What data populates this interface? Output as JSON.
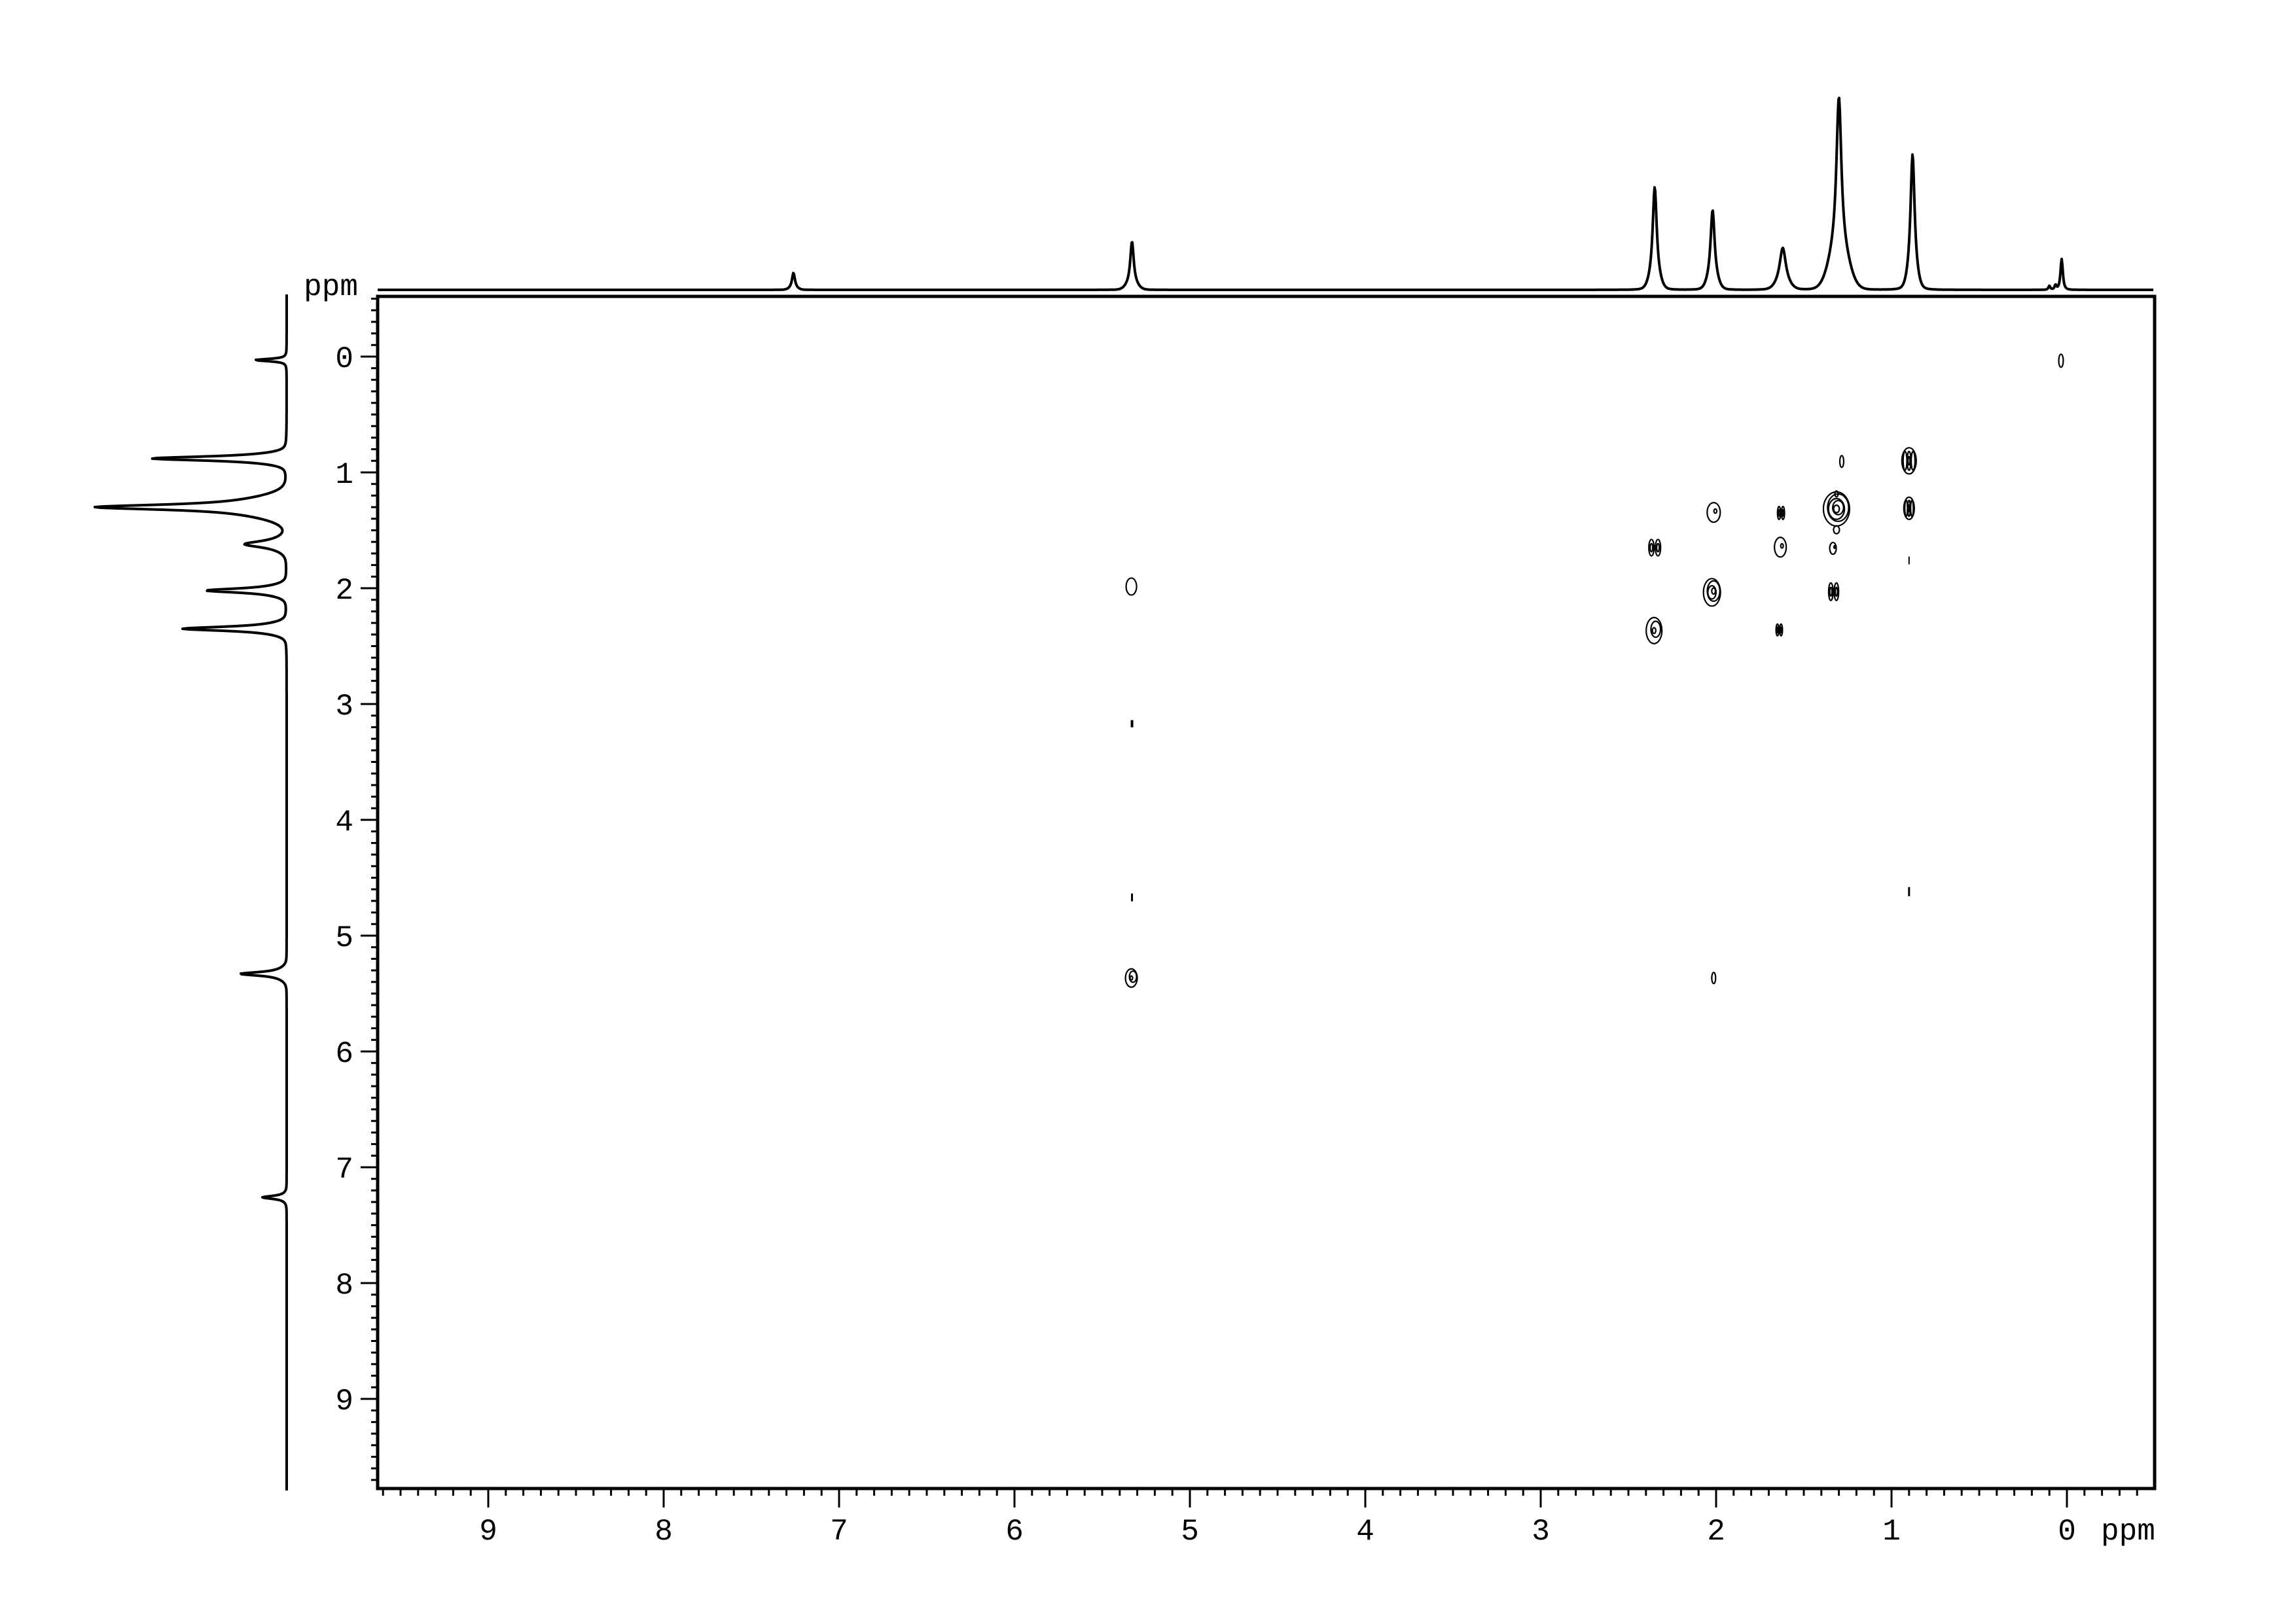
{
  "colors": {
    "foreground": "#000000",
    "background": "#ffffff"
  },
  "chart_data": {
    "type": "heatmap",
    "subtype": "2D 1H-1H COSY NMR contour spectrum with 1D projection traces on top and left",
    "title": "",
    "xlabel": "ppm",
    "ylabel": "ppm",
    "x_axis": {
      "label": "ppm",
      "major_ticks": [
        9,
        8,
        7,
        6,
        5,
        4,
        3,
        2,
        1,
        0
      ],
      "minor_tick_step": 0.1,
      "range_ppm": [
        9.63,
        -0.5
      ],
      "direction": "ppm decreases left-to-right"
    },
    "y_axis": {
      "label": "ppm",
      "major_ticks": [
        0,
        1,
        2,
        3,
        4,
        5,
        6,
        7,
        8,
        9
      ],
      "minor_tick_step": 0.1,
      "range_ppm": [
        -0.52,
        9.79
      ],
      "direction": "ppm increases top-to-bottom"
    },
    "grid": "off",
    "legend": "none",
    "projection_peaks_1d": [
      {
        "ppm": 7.26,
        "top_height": 22,
        "left_height": 33,
        "w": 3,
        "base_h": 4,
        "base_w": 8
      },
      {
        "ppm": 5.33,
        "top_height": 61,
        "left_height": 58,
        "w": 3.5,
        "base_h": 13,
        "base_w": 11
      },
      {
        "ppm": 2.35,
        "top_height": 127,
        "left_height": 129,
        "w": 4,
        "base_h": 30,
        "base_w": 10
      },
      {
        "ppm": 2.02,
        "top_height": 96,
        "left_height": 97,
        "w": 4,
        "base_h": 26,
        "base_w": 10
      },
      {
        "ppm": 1.62,
        "top_height": 48,
        "left_height": 48,
        "w": 6,
        "base_h": 16,
        "base_w": 13
      },
      {
        "ppm": 1.3,
        "top_height": 217,
        "left_height": 215,
        "w": 5,
        "base_h": 78,
        "base_w": 19
      },
      {
        "ppm": 0.88,
        "top_height": 165,
        "left_height": 164,
        "w": 4,
        "base_h": 42,
        "base_w": 9
      },
      {
        "ppm": 0.03,
        "top_height": 47,
        "left_height": 48,
        "w": 2.5,
        "base_h": 0,
        "base_w": 8
      },
      {
        "ppm": 0.1,
        "top_height": 6,
        "left_height": 0,
        "w": 2,
        "base_h": 0,
        "base_w": 5
      },
      {
        "ppm": 0.065,
        "top_height": 7,
        "left_height": 0,
        "w": 2,
        "base_h": 0,
        "base_w": 5
      }
    ],
    "contour_peaks": {
      "diagonal": [
        {
          "f2": 0.03,
          "f1": 0.03,
          "w": 7,
          "h": 20,
          "style": "rings",
          "rings": 1
        },
        {
          "f2": 0.9,
          "f1": 0.9,
          "w": 22,
          "h": 40,
          "style": "striped"
        },
        {
          "f2": 1.31,
          "f1": 1.31,
          "w": 40,
          "h": 52,
          "style": "rings",
          "rings": 5
        },
        {
          "f2": 1.63,
          "f1": 1.64,
          "w": 18,
          "h": 30,
          "style": "rings",
          "rings": 2
        },
        {
          "f2": 2.02,
          "f1": 2.03,
          "w": 26,
          "h": 42,
          "style": "rings",
          "rings": 4
        },
        {
          "f2": 2.35,
          "f1": 2.36,
          "w": 24,
          "h": 40,
          "style": "rings",
          "rings": 3
        },
        {
          "f2": 5.33,
          "f1": 5.36,
          "w": 18,
          "h": 28,
          "style": "rings",
          "rings": 3
        }
      ],
      "cross": [
        {
          "f2": 1.28,
          "f1": 0.9,
          "w": 6,
          "h": 18,
          "style": "rings",
          "rings": 1
        },
        {
          "f2": 0.9,
          "f1": 1.31,
          "w": 16,
          "h": 34,
          "style": "striped"
        },
        {
          "f2": 2.01,
          "f1": 1.34,
          "w": 20,
          "h": 30,
          "style": "rings",
          "rings": 2
        },
        {
          "f2": 1.63,
          "f1": 1.35,
          "w": 12,
          "h": 22,
          "style": "double"
        },
        {
          "f2": 1.33,
          "f1": 1.65,
          "w": 10,
          "h": 18,
          "style": "rings",
          "rings": 2
        },
        {
          "f2": 2.35,
          "f1": 1.65,
          "w": 20,
          "h": 28,
          "style": "double"
        },
        {
          "f2": 1.64,
          "f1": 2.36,
          "w": 11,
          "h": 20,
          "style": "double"
        },
        {
          "f2": 1.33,
          "f1": 2.03,
          "w": 17,
          "h": 30,
          "style": "double"
        },
        {
          "f2": 5.33,
          "f1": 1.98,
          "w": 16,
          "h": 26,
          "style": "rings",
          "rings": 1
        },
        {
          "f2": 2.01,
          "f1": 5.36,
          "w": 6,
          "h": 17,
          "style": "rings",
          "rings": 1
        }
      ],
      "minor_spots": [
        {
          "f2": 1.31,
          "f1": 1.18,
          "w": 5,
          "h": 9,
          "style": "rings",
          "rings": 1
        },
        {
          "f2": 1.31,
          "f1": 1.49,
          "w": 9,
          "h": 12,
          "style": "rings",
          "rings": 1
        },
        {
          "f2": 0.9,
          "f1": 1.76,
          "w": 2,
          "h": 12,
          "style": "dash"
        },
        {
          "f2": 0.9,
          "f1": 4.62,
          "w": 3,
          "h": 14,
          "style": "dash"
        },
        {
          "f2": 5.33,
          "f1": 3.17,
          "w": 4,
          "h": 11,
          "style": "dash"
        },
        {
          "f2": 5.33,
          "f1": 4.67,
          "w": 3,
          "h": 12,
          "style": "dash"
        }
      ]
    }
  }
}
